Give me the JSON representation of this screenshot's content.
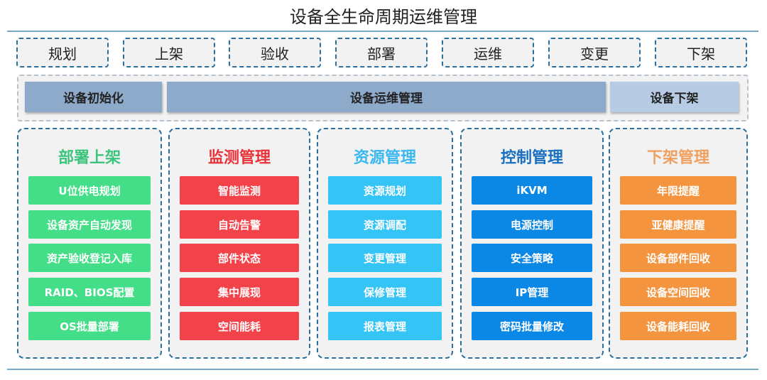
{
  "title": "设备全生命周期运维管理",
  "stages": [
    "规划",
    "上架",
    "验收",
    "部署",
    "运维",
    "变更",
    "下架"
  ],
  "phases": [
    {
      "label": "设备初始化",
      "color": "#8eaacb"
    },
    {
      "label": "设备运维管理",
      "color": "#8eaacb"
    },
    {
      "label": "设备下架",
      "color": "#b7cce4"
    }
  ],
  "columns": [
    {
      "title": "部署上架",
      "title_color": "#3cc47c",
      "item_color": "#45de88",
      "items": [
        "U位供电规划",
        "设备资产自动发现",
        "资产验收登记入库",
        "RAID、BIOS配置",
        "OS批量部署"
      ]
    },
    {
      "title": "监测管理",
      "title_color": "#e8333a",
      "item_color": "#f3434a",
      "items": [
        "智能监测",
        "自动告警",
        "部件状态",
        "集中展现",
        "空间能耗"
      ]
    },
    {
      "title": "资源管理",
      "title_color": "#3ab8f0",
      "item_color": "#35c4f6",
      "items": [
        "资源规划",
        "资源调配",
        "变更管理",
        "保修管理",
        "报表管理"
      ]
    },
    {
      "title": "控制管理",
      "title_color": "#1a6fc0",
      "item_color": "#0b87e6",
      "items": [
        "iKVM",
        "电源控制",
        "安全策略",
        "IP管理",
        "密码批量修改"
      ]
    },
    {
      "title": "下架管理",
      "title_color": "#f0a060",
      "item_color": "#f5943f",
      "items": [
        "年限提醒",
        "亚健康提醒",
        "设备部件回收",
        "设备空间回收",
        "设备能耗回收"
      ]
    }
  ]
}
